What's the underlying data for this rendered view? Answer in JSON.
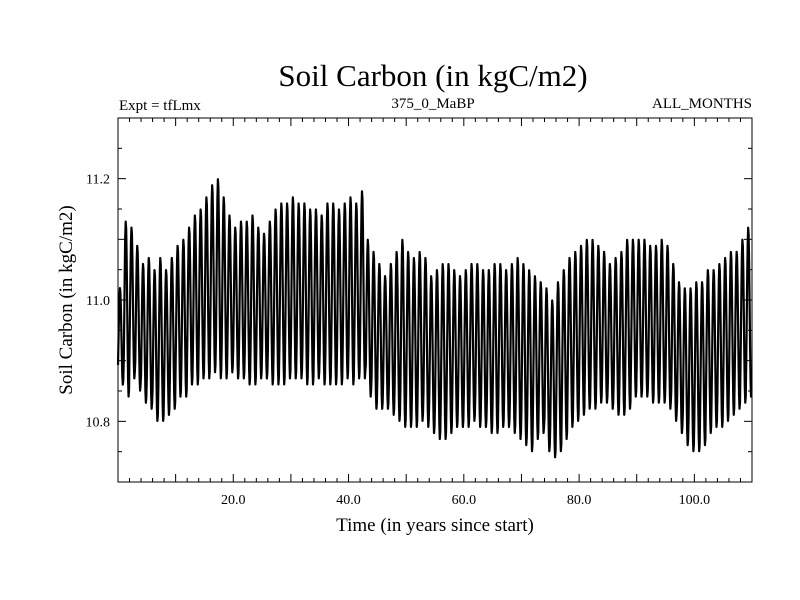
{
  "chart_data": {
    "type": "line",
    "title": "Soil Carbon (in kgC/m2)",
    "subtitle_left": "Expt = tfLmx",
    "subtitle_center": "375_0_MaBP",
    "subtitle_right": "ALL_MONTHS",
    "xlabel": "Time (in years since start)",
    "ylabel": "Soil Carbon (in kgC/m2)",
    "xlim": [
      0,
      110
    ],
    "ylim": [
      10.7,
      11.3
    ],
    "xticks": [
      {
        "value": 20,
        "label": "20.0"
      },
      {
        "value": 40,
        "label": "40.0"
      },
      {
        "value": 60,
        "label": "60.0"
      },
      {
        "value": 80,
        "label": "80.0"
      },
      {
        "value": 100,
        "label": "100.0"
      }
    ],
    "yticks": [
      {
        "value": 10.8,
        "label": "10.8"
      },
      {
        "value": 11.0,
        "label": "11.0"
      },
      {
        "value": 11.2,
        "label": "11.2"
      }
    ],
    "series": [
      {
        "name": "Soil Carbon",
        "color": "#000000",
        "note": "annual cycle; per-year maximum and minimum values",
        "years": [
          0,
          1,
          2,
          3,
          4,
          5,
          6,
          7,
          8,
          9,
          10,
          11,
          12,
          13,
          14,
          15,
          16,
          17,
          18,
          19,
          20,
          21,
          22,
          23,
          24,
          25,
          26,
          27,
          28,
          29,
          30,
          31,
          32,
          33,
          34,
          35,
          36,
          37,
          38,
          39,
          40,
          41,
          42,
          43,
          44,
          45,
          46,
          47,
          48,
          49,
          50,
          51,
          52,
          53,
          54,
          55,
          56,
          57,
          58,
          59,
          60,
          61,
          62,
          63,
          64,
          65,
          66,
          67,
          68,
          69,
          70,
          71,
          72,
          73,
          74,
          75,
          76,
          77,
          78,
          79,
          80,
          81,
          82,
          83,
          84,
          85,
          86,
          87,
          88,
          89,
          90,
          91,
          92,
          93,
          94,
          95,
          96,
          97,
          98,
          99,
          100,
          101,
          102,
          103,
          104,
          105,
          106,
          107,
          108,
          109
        ],
        "max": [
          11.02,
          11.13,
          11.12,
          11.09,
          11.06,
          11.07,
          11.05,
          11.07,
          11.05,
          11.07,
          11.09,
          11.1,
          11.12,
          11.14,
          11.15,
          11.17,
          11.19,
          11.2,
          11.17,
          11.14,
          11.12,
          11.13,
          11.13,
          11.14,
          11.12,
          11.11,
          11.13,
          11.15,
          11.16,
          11.16,
          11.17,
          11.16,
          11.16,
          11.15,
          11.15,
          11.14,
          11.16,
          11.16,
          11.15,
          11.16,
          11.17,
          11.16,
          11.18,
          11.1,
          11.08,
          11.06,
          11.04,
          11.06,
          11.08,
          11.1,
          11.08,
          11.07,
          11.08,
          11.07,
          11.04,
          11.05,
          11.06,
          11.06,
          11.05,
          11.04,
          11.05,
          11.06,
          11.06,
          11.05,
          11.05,
          11.06,
          11.06,
          11.05,
          11.06,
          11.07,
          11.06,
          11.05,
          11.04,
          11.03,
          11.02,
          11.0,
          11.03,
          11.05,
          11.07,
          11.08,
          11.09,
          11.1,
          11.1,
          11.09,
          11.08,
          11.06,
          11.07,
          11.08,
          11.1,
          11.1,
          11.1,
          11.1,
          11.09,
          11.09,
          11.1,
          11.09,
          11.06,
          11.03,
          11.02,
          11.02,
          11.03,
          11.03,
          11.05,
          11.05,
          11.06,
          11.07,
          11.08,
          11.08,
          11.1,
          11.12
        ],
        "min": [
          10.86,
          10.84,
          10.87,
          10.85,
          10.83,
          10.82,
          10.8,
          10.8,
          10.81,
          10.82,
          10.84,
          10.84,
          10.86,
          10.86,
          10.87,
          10.87,
          10.88,
          10.87,
          10.87,
          10.88,
          10.87,
          10.87,
          10.86,
          10.86,
          10.87,
          10.87,
          10.86,
          10.86,
          10.86,
          10.87,
          10.87,
          10.87,
          10.86,
          10.86,
          10.87,
          10.86,
          10.86,
          10.86,
          10.86,
          10.87,
          10.86,
          10.87,
          10.87,
          10.84,
          10.82,
          10.82,
          10.82,
          10.81,
          10.8,
          10.79,
          10.79,
          10.79,
          10.8,
          10.79,
          10.78,
          10.77,
          10.77,
          10.78,
          10.79,
          10.79,
          10.79,
          10.8,
          10.79,
          10.79,
          10.78,
          10.78,
          10.79,
          10.79,
          10.78,
          10.77,
          10.76,
          10.75,
          10.77,
          10.78,
          10.75,
          10.74,
          10.75,
          10.77,
          10.79,
          10.8,
          10.81,
          10.82,
          10.82,
          10.83,
          10.83,
          10.82,
          10.81,
          10.81,
          10.82,
          10.84,
          10.84,
          10.84,
          10.83,
          10.83,
          10.83,
          10.82,
          10.8,
          10.78,
          10.76,
          10.75,
          10.75,
          10.76,
          10.78,
          10.79,
          10.79,
          10.8,
          10.81,
          10.82,
          10.83,
          10.84
        ]
      }
    ]
  }
}
